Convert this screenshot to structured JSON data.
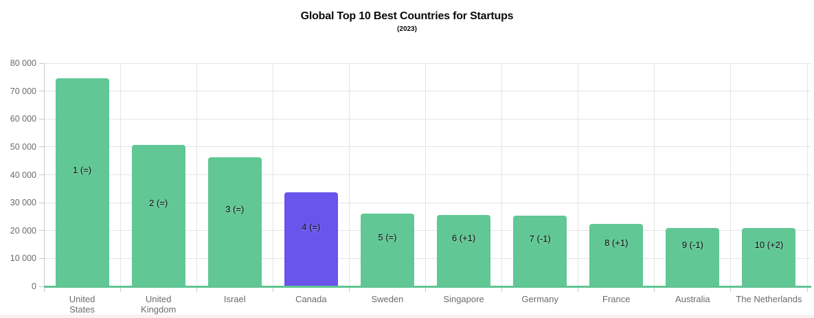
{
  "header": {
    "title": "Global Top 10 Best Countries for Startups",
    "subtitle": "(2023)"
  },
  "chart_data": {
    "type": "bar",
    "title": "Global Top 10 Best Countries for Startups",
    "subtitle": "(2023)",
    "categories": [
      "United States",
      "United Kingdom",
      "Israel",
      "Canada",
      "Sweden",
      "Singapore",
      "Germany",
      "France",
      "Australia",
      "The Netherlands"
    ],
    "category_display": [
      "United\nStates",
      "United\nKingdom",
      "Israel",
      "Canada",
      "Sweden",
      "Singapore",
      "Germany",
      "France",
      "Australia",
      "The Netherlands"
    ],
    "values": [
      74500,
      50700,
      46200,
      33800,
      26200,
      25700,
      25400,
      22400,
      21000,
      20800
    ],
    "bar_labels": [
      "1 (=)",
      "2 (=)",
      "3 (=)",
      "4 (=)",
      "5 (=)",
      "6 (+1)",
      "7 (-1)",
      "8 (+1)",
      "9 (-1)",
      "10 (+2)"
    ],
    "highlighted_category": "Canada",
    "highlighted_index": 3,
    "xlabel": "",
    "ylabel": "",
    "ylim": [
      0,
      80000
    ],
    "ytick_values": [
      0,
      10000,
      20000,
      30000,
      40000,
      50000,
      60000,
      70000,
      80000
    ],
    "ytick_labels": [
      "0",
      "10 000",
      "20 000",
      "30 000",
      "40 000",
      "50 000",
      "60 000",
      "70 000",
      "80 000"
    ],
    "grid": "both",
    "legend": "none",
    "colors": {
      "bar": "#61C795",
      "highlight": "#6A54EC",
      "baseline": "#5FC492",
      "gridline": "#e4e4e4",
      "axis": "#c9c9c9",
      "tick_label": "#6b6b6b",
      "bar_label": "#111111",
      "title": "#0b0b0b"
    }
  }
}
